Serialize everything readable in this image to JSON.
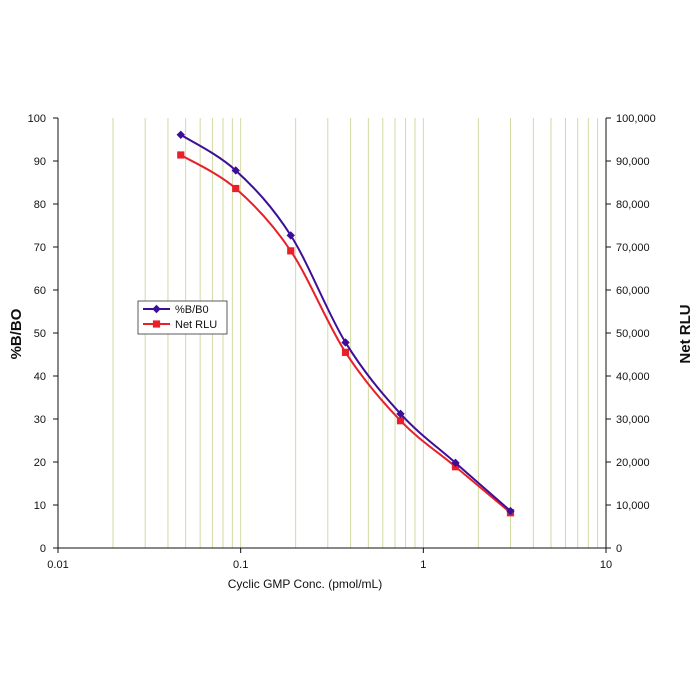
{
  "chart_data": {
    "type": "line",
    "title": "",
    "xlabel": "Cyclic GMP Conc. (pmol/mL)",
    "ylabel_left": "%B/BO",
    "ylabel_right": "Net RLU",
    "x_scale": "log",
    "xlim": [
      0.01,
      10
    ],
    "x_ticks": [
      0.01,
      0.1,
      1,
      10
    ],
    "x_tick_labels": [
      "0.01",
      "0.1",
      "1",
      "10"
    ],
    "ylim_left": [
      0,
      100
    ],
    "y_ticks_left": [
      0,
      10,
      20,
      30,
      40,
      50,
      60,
      70,
      80,
      90,
      100
    ],
    "y_tick_labels_left": [
      "0",
      "10",
      "20",
      "30",
      "40",
      "50",
      "60",
      "70",
      "80",
      "90",
      "100"
    ],
    "ylim_right": [
      0,
      100000
    ],
    "y_ticks_right": [
      0,
      10000,
      20000,
      30000,
      40000,
      50000,
      60000,
      70000,
      80000,
      90000,
      100000
    ],
    "y_tick_labels_right": [
      "0",
      "10,000",
      "20,000",
      "30,000",
      "40,000",
      "50,000",
      "60,000",
      "70,000",
      "80,000",
      "90,000",
      "100,000"
    ],
    "grid": "vertical-log",
    "legend_position": "left-middle",
    "series": [
      {
        "name": "%B/B0",
        "axis": "left",
        "color": "#3d0f99",
        "marker": "diamond",
        "x": [
          0.047,
          0.094,
          0.188,
          0.375,
          0.75,
          1.5,
          3.0
        ],
        "y": [
          96.1,
          87.8,
          72.7,
          47.8,
          31.2,
          19.8,
          8.6
        ]
      },
      {
        "name": "Net RLU",
        "axis": "right",
        "color": "#e8202a",
        "marker": "square",
        "x": [
          0.047,
          0.094,
          0.188,
          0.375,
          0.75,
          1.5,
          3.0
        ],
        "y": [
          91400,
          83600,
          69100,
          45500,
          29600,
          18900,
          8200
        ]
      }
    ],
    "colors": {
      "grid": "#cfd59a",
      "axis": "#111111"
    }
  }
}
